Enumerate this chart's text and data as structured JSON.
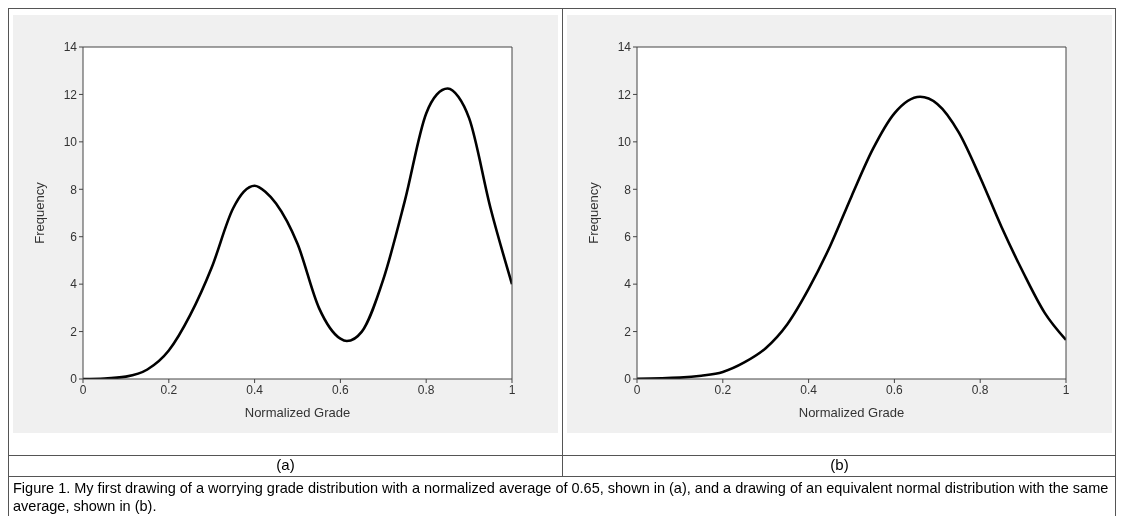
{
  "chart_data": [
    {
      "type": "line",
      "xlabel": "Normalized Grade",
      "ylabel": "Frequency",
      "xlim": [
        0,
        1
      ],
      "ylim": [
        0,
        14
      ],
      "xticks": [
        0,
        0.2,
        0.4,
        0.6,
        0.8,
        1
      ],
      "yticks": [
        0,
        2,
        4,
        6,
        8,
        10,
        12,
        14
      ],
      "marker": "none",
      "line_style": "solid",
      "x": [
        0,
        0.05,
        0.1,
        0.15,
        0.2,
        0.25,
        0.3,
        0.35,
        0.375,
        0.4,
        0.425,
        0.45,
        0.5,
        0.55,
        0.6,
        0.615,
        0.65,
        0.7,
        0.75,
        0.8,
        0.825,
        0.85,
        0.875,
        0.9,
        0.95,
        1
      ],
      "series": [
        {
          "color": "#000000",
          "values": [
            0,
            0.02,
            0.1,
            0.4,
            1.2,
            2.7,
            4.7,
            7.2,
            7.9,
            8.15,
            7.9,
            7.4,
            5.7,
            3.0,
            1.7,
            1.6,
            2.0,
            4.2,
            7.5,
            11.2,
            12.0,
            12.25,
            11.9,
            11.0,
            7.2,
            4.0
          ]
        }
      ],
      "annotations": [
        "(a)",
        "Figure 1. My first drawing of a worrying grade distribution with a normalized average of 0.65, shown in (a), and a drawing of an equivalent normal distribution with the same average, shown in (b)."
      ]
    },
    {
      "type": "line",
      "xlabel": "Normalized Grade",
      "ylabel": "Frequency",
      "xlim": [
        0,
        1
      ],
      "ylim": [
        0,
        14
      ],
      "xticks": [
        0,
        0.2,
        0.4,
        0.6,
        0.8,
        1
      ],
      "yticks": [
        0,
        2,
        4,
        6,
        8,
        10,
        12,
        14
      ],
      "marker": "none",
      "line_style": "solid",
      "x": [
        0,
        0.1,
        0.15,
        0.2,
        0.25,
        0.3,
        0.35,
        0.4,
        0.45,
        0.5,
        0.55,
        0.6,
        0.66,
        0.7,
        0.75,
        0.8,
        0.85,
        0.9,
        0.95,
        1
      ],
      "series": [
        {
          "color": "#000000",
          "values": [
            0.01,
            0.06,
            0.14,
            0.3,
            0.7,
            1.3,
            2.3,
            3.8,
            5.6,
            7.7,
            9.7,
            11.2,
            11.9,
            11.6,
            10.4,
            8.5,
            6.4,
            4.5,
            2.8,
            1.65
          ]
        }
      ],
      "annotations": [
        "(b)"
      ]
    }
  ]
}
